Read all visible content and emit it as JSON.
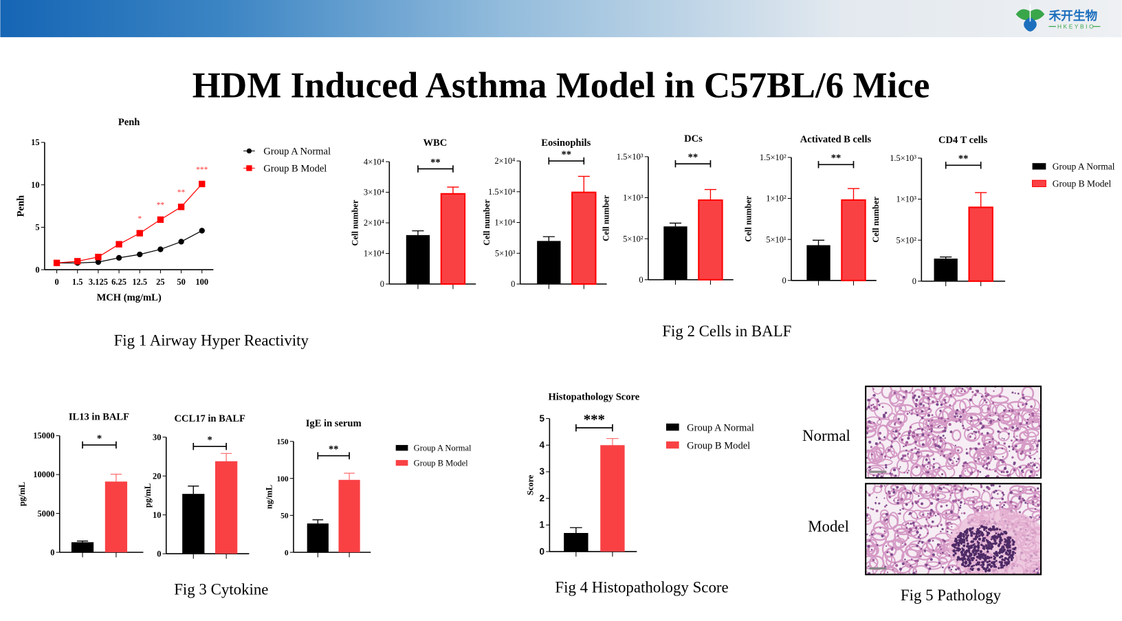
{
  "header": {
    "logo": {
      "name_cn": "禾开生物",
      "name_en": "HKEYBIO"
    },
    "colors": {
      "gradient_start": "#1565b5",
      "gradient_end": "#eef0f3"
    }
  },
  "page_title": "HDM Induced Asthma Model in C57BL/6 Mice",
  "colors": {
    "normal": "#000000",
    "model": "#f94144",
    "model_outline": "#ff0000"
  },
  "figures": {
    "fig1": {
      "caption": "Fig 1 Airway Hyper Reactivity",
      "legend": [
        "Group A Normal",
        "Group B  Model"
      ]
    },
    "fig2": {
      "caption": "Fig 2 Cells in BALF",
      "legend": [
        "Group A Normal",
        "Group B Model"
      ]
    },
    "fig3": {
      "caption": "Fig 3 Cytokine",
      "legend": [
        "Group A Normal",
        "Group B Model"
      ]
    },
    "fig4": {
      "caption": "Fig 4 Histopathology Score",
      "legend": [
        "Group A Normal",
        "Group B Model"
      ]
    },
    "fig5": {
      "caption": "Fig 5 Pathology",
      "labels": [
        "Normal",
        "Model"
      ]
    }
  },
  "chart_data": [
    {
      "type": "line",
      "title": "Penh",
      "xlabel": "MCH (mg/mL)",
      "ylabel": "Penh",
      "categories": [
        "0",
        "1.5",
        "3.125",
        "6.25",
        "12.5",
        "25",
        "50",
        "100"
      ],
      "ylim": [
        0,
        15
      ],
      "yticks": [
        0,
        5,
        10,
        15
      ],
      "ytick_labels": [
        "0",
        "5",
        "10",
        "15"
      ],
      "series": [
        {
          "name": "Group A Normal",
          "values": [
            0.8,
            0.8,
            0.9,
            1.4,
            1.8,
            2.4,
            3.3,
            4.6
          ],
          "color": "#000000",
          "marker": "circle"
        },
        {
          "name": "Group B  Model",
          "values": [
            0.8,
            1.0,
            1.5,
            3.0,
            4.3,
            5.9,
            7.4,
            10.1
          ],
          "color": "#ff0000",
          "marker": "square",
          "significance": [
            "",
            "",
            "",
            "",
            "*",
            "**",
            "**",
            "***"
          ]
        }
      ],
      "legend": "top-right",
      "grid": false
    },
    {
      "type": "bar",
      "title": "WBC",
      "ylabel": "Cell number",
      "categories": [
        "Group A Normal",
        "Group B Model"
      ],
      "values": [
        16000,
        29500
      ],
      "errors": [
        1400,
        2200
      ],
      "ylim": [
        0,
        40000
      ],
      "yticks": [
        0,
        10000,
        20000,
        30000,
        40000
      ],
      "ytick_labels": [
        "0",
        "1×10⁴",
        "2×10⁴",
        "3×10⁴",
        "4×10⁴"
      ],
      "significance": "**"
    },
    {
      "type": "bar",
      "title": "Eosinophils",
      "ylabel": "Cell number",
      "categories": [
        "Group A Normal",
        "Group B Model"
      ],
      "values": [
        7000,
        14900
      ],
      "errors": [
        700,
        2600
      ],
      "ylim": [
        0,
        20000
      ],
      "yticks": [
        0,
        5000,
        10000,
        15000,
        20000
      ],
      "ytick_labels": [
        "0",
        "5×10³",
        "1×10⁴",
        "1.5×10⁴",
        "2×10⁴"
      ],
      "significance": "**"
    },
    {
      "type": "bar",
      "title": "DCs",
      "ylabel": "Cell number",
      "categories": [
        "Group A Normal",
        "Group B Model"
      ],
      "values": [
        650,
        970
      ],
      "errors": [
        40,
        130
      ],
      "ylim": [
        0,
        1500
      ],
      "yticks": [
        0,
        500,
        1000,
        1500
      ],
      "ytick_labels": [
        "0",
        "5×10²",
        "1×10³",
        "1.5×10³"
      ],
      "significance": "**"
    },
    {
      "type": "bar",
      "title": "Activated B cells",
      "ylabel": "Cell number",
      "categories": [
        "Group A Normal",
        "Group B Model"
      ],
      "values": [
        43,
        98
      ],
      "errors": [
        6,
        14
      ],
      "ylim": [
        0,
        150
      ],
      "yticks": [
        0,
        50,
        100,
        150
      ],
      "ytick_labels": [
        "0",
        "5×10¹",
        "1×10²",
        "1.5×10²"
      ],
      "significance": "**"
    },
    {
      "type": "bar",
      "title": "CD4 T cells",
      "ylabel": "Cell number",
      "categories": [
        "Group A Normal",
        "Group B Model"
      ],
      "values": [
        275,
        900
      ],
      "errors": [
        20,
        180
      ],
      "ylim": [
        0,
        1500
      ],
      "yticks": [
        0,
        500,
        1000,
        1500
      ],
      "ytick_labels": [
        "0",
        "5×10²",
        "1×10³",
        "1.5×10³"
      ],
      "significance": "**"
    },
    {
      "type": "bar",
      "title": "IL13 in BALF",
      "ylabel": "pg/mL",
      "categories": [
        "Group A Normal",
        "Group B Model"
      ],
      "values": [
        1300,
        9100
      ],
      "errors": [
        150,
        950
      ],
      "ylim": [
        0,
        15000
      ],
      "yticks": [
        0,
        5000,
        10000,
        15000
      ],
      "ytick_labels": [
        "0",
        "5000",
        "10000",
        "15000"
      ],
      "significance": "*"
    },
    {
      "type": "bar",
      "title": "CCL17 in BALF",
      "ylabel": "pg/mL",
      "categories": [
        "Group A Normal",
        "Group B Model"
      ],
      "values": [
        15.4,
        23.8
      ],
      "errors": [
        2.0,
        2.0
      ],
      "ylim": [
        0,
        30
      ],
      "yticks": [
        0,
        10,
        20,
        30
      ],
      "ytick_labels": [
        "0",
        "10",
        "20",
        "30"
      ],
      "significance": "*"
    },
    {
      "type": "bar",
      "title": "IgE in serum",
      "ylabel": "ng/mL",
      "categories": [
        "Group A Normal",
        "Group B Model"
      ],
      "values": [
        39,
        98
      ],
      "errors": [
        5,
        9
      ],
      "ylim": [
        0,
        150
      ],
      "yticks": [
        0,
        50,
        100,
        150
      ],
      "ytick_labels": [
        "0",
        "50",
        "100",
        "150"
      ],
      "significance": "**"
    },
    {
      "type": "bar",
      "title": "Histopathology Score",
      "ylabel": "Score",
      "categories": [
        "Group A Normal",
        "Group B Model"
      ],
      "values": [
        0.7,
        4.0
      ],
      "errors": [
        0.2,
        0.25
      ],
      "ylim": [
        0,
        5
      ],
      "yticks": [
        0,
        1,
        2,
        3,
        4,
        5
      ],
      "ytick_labels": [
        "0",
        "1",
        "2",
        "3",
        "4",
        "5"
      ],
      "significance": "***"
    }
  ]
}
